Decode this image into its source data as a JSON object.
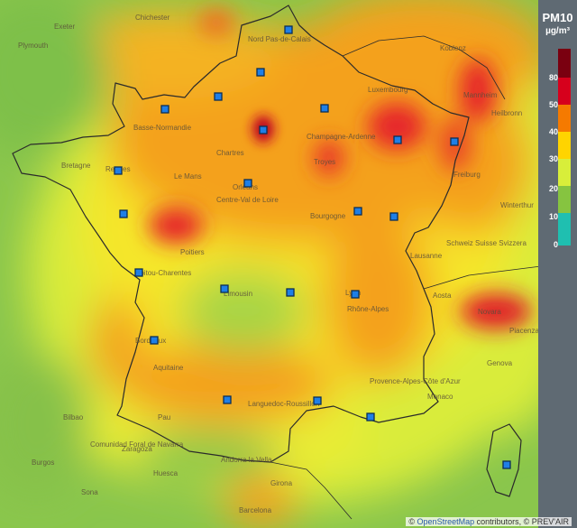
{
  "legend": {
    "title": "PM10",
    "unit": "µg/m³",
    "scale": [
      {
        "value": "80",
        "color": "#d6001c"
      },
      {
        "value": "50",
        "color": "#f57a00"
      },
      {
        "value": "40",
        "color": "#ffd400"
      },
      {
        "value": "30",
        "color": "#d8ee3a"
      },
      {
        "value": "20",
        "color": "#86c440"
      },
      {
        "value": "10",
        "color": "#3cbc80"
      },
      {
        "value": "0",
        "color": "#1fbfb0"
      }
    ],
    "top_color": "#7a0010"
  },
  "attribution": {
    "prefix": "©",
    "link_text": "OpenStreetMap",
    "suffix": "contributors, © PREV'AIR"
  },
  "places": [
    "Chichester",
    "Plymouth",
    "Exeter",
    "Nord Pas-de-Calais",
    "Koblenz",
    "Luxembourg",
    "Mannheim",
    "Heilbronn",
    "Rennes",
    "Le Mans",
    "Chartres",
    "Troyes",
    "Orléans",
    "Centre-Val de Loire",
    "Bretagne",
    "Basse-Normandie",
    "Champagne-Ardenne",
    "Bourgogne",
    "Poitiers",
    "Freiburg",
    "Winterthur",
    "Lausanne",
    "Schweiz Suisse Svizzera",
    "Poitou-Charentes",
    "Limousin",
    "Aosta",
    "Lyon",
    "Rhône-Alpes",
    "Novara",
    "Piacenza",
    "Bordeaux",
    "Aquitaine",
    "Genova",
    "Monaco",
    "Provence-Alpes-Côte d'Azur",
    "Languedoc-Roussillon",
    "Pau",
    "Bilbao",
    "Andorra la Vella",
    "Comunidad Foral de Navarra",
    "Burgos",
    "Huesca",
    "Sona",
    "Girona",
    "Barcelona",
    "Zaragoza"
  ]
}
